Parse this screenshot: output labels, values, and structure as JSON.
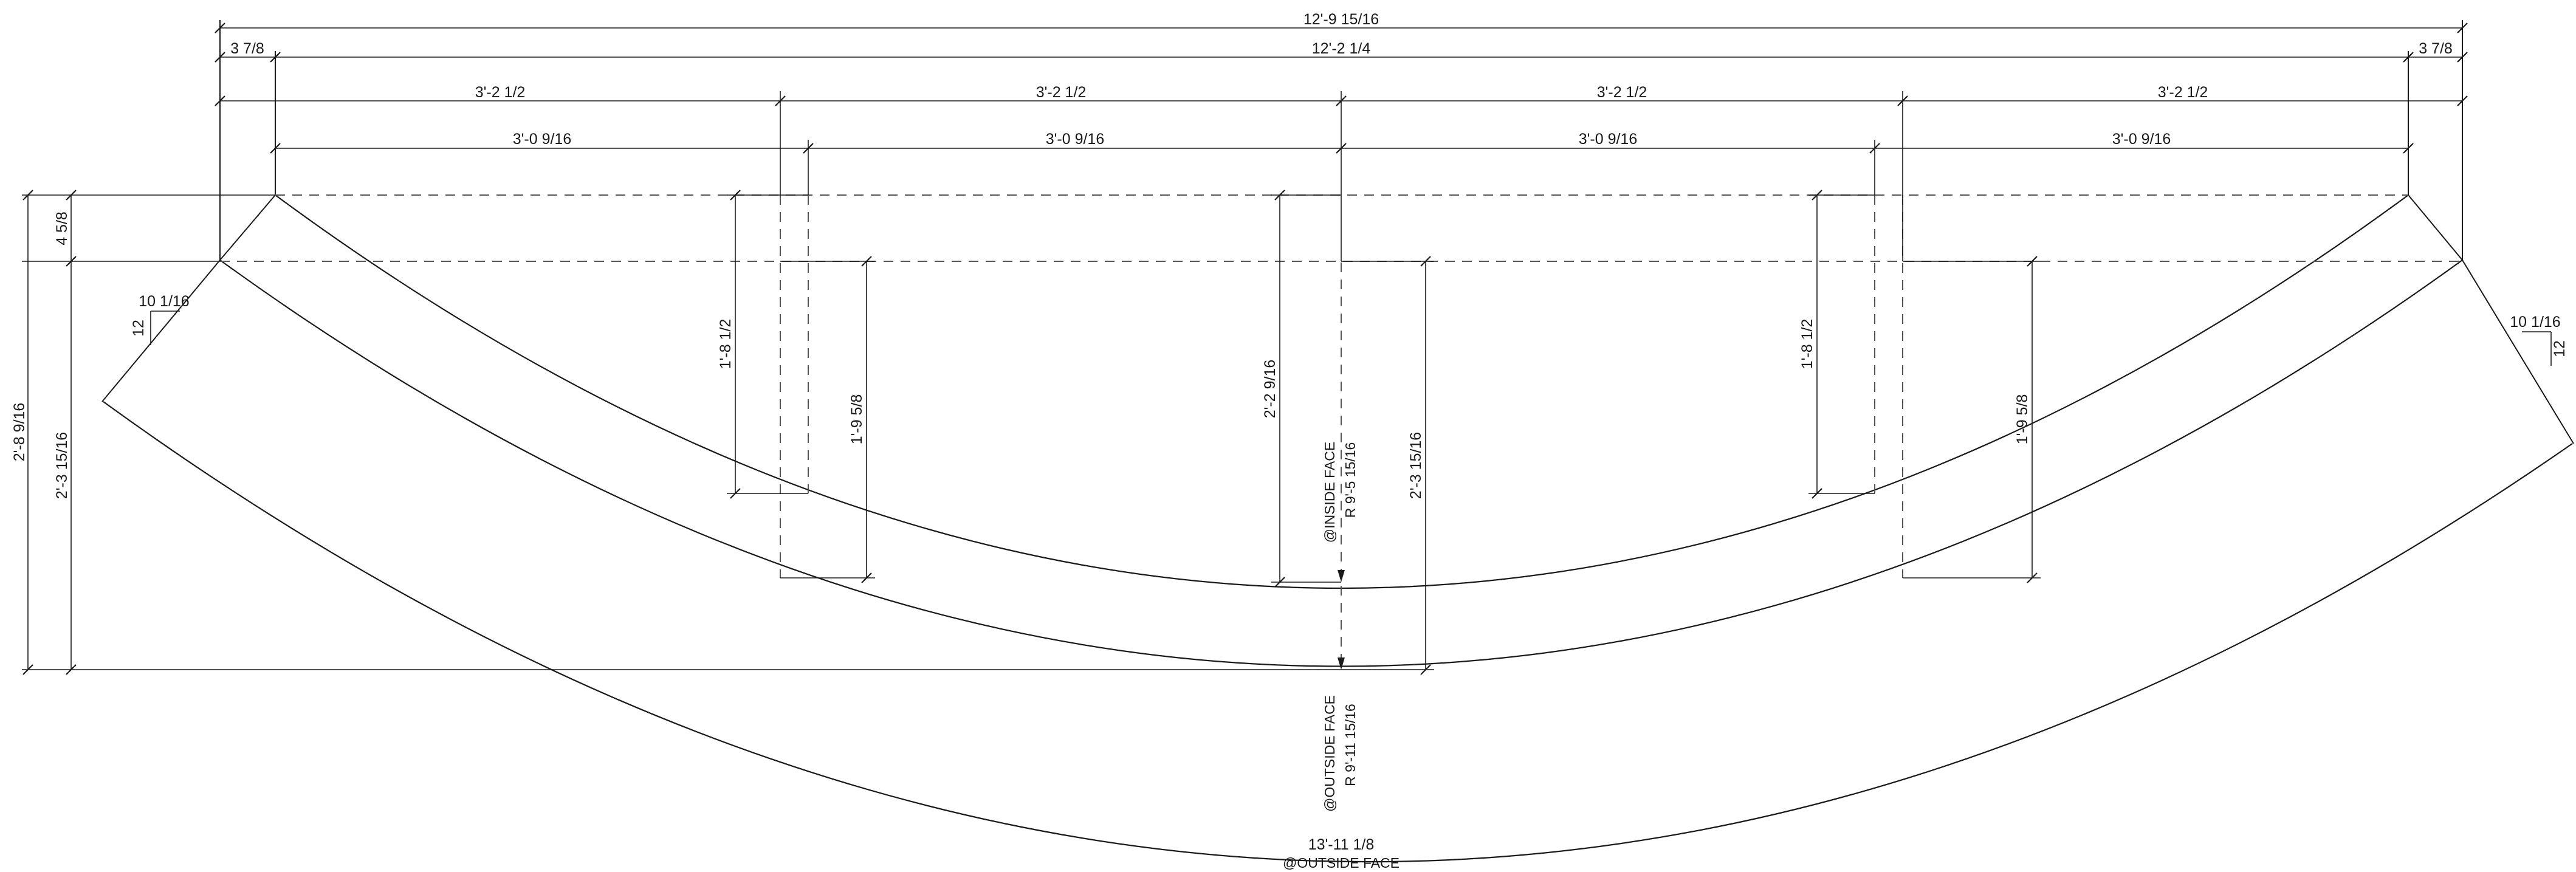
{
  "dimensions": {
    "overall_width": "12'-9 15/16",
    "left_offset": "3 7/8",
    "inside_width": "12'-2 1/4",
    "right_offset": "3 7/8",
    "segment_1": "3'-2 1/2",
    "segment_2": "3'-2 1/2",
    "segment_3": "3'-2 1/2",
    "segment_4": "3'-2 1/2",
    "inner_segment_1": "3'-0 9/16",
    "inner_segment_2": "3'-0 9/16",
    "inner_segment_3": "3'-0 9/16",
    "inner_segment_4": "3'-0 9/16",
    "top_offset": "4 5/8",
    "total_depth": "2'-8 9/16",
    "left_depth": "2'-3 15/16",
    "left_sag_inside": "1'-8 1/2",
    "left_sag_outside": "1'-9 5/8",
    "center_depth": "2'-2 9/16",
    "center_depth_outside": "2'-3 15/16",
    "right_sag_inside": "1'-8 1/2",
    "right_sag_outside": "1'-9 5/8",
    "bottom_arc_length": "13'-11 1/8"
  },
  "slopes": {
    "left_rise": "10 1/16",
    "left_run": "12",
    "right_rise": "10 1/16",
    "right_run": "12"
  },
  "labels": {
    "inside_face": "@INSIDE FACE",
    "inside_radius": "R 9'-5 15/16",
    "outside_face": "@OUTSIDE FACE",
    "outside_radius": "R 9'-11 15/16",
    "bottom_note": "@OUTSIDE FACE"
  }
}
